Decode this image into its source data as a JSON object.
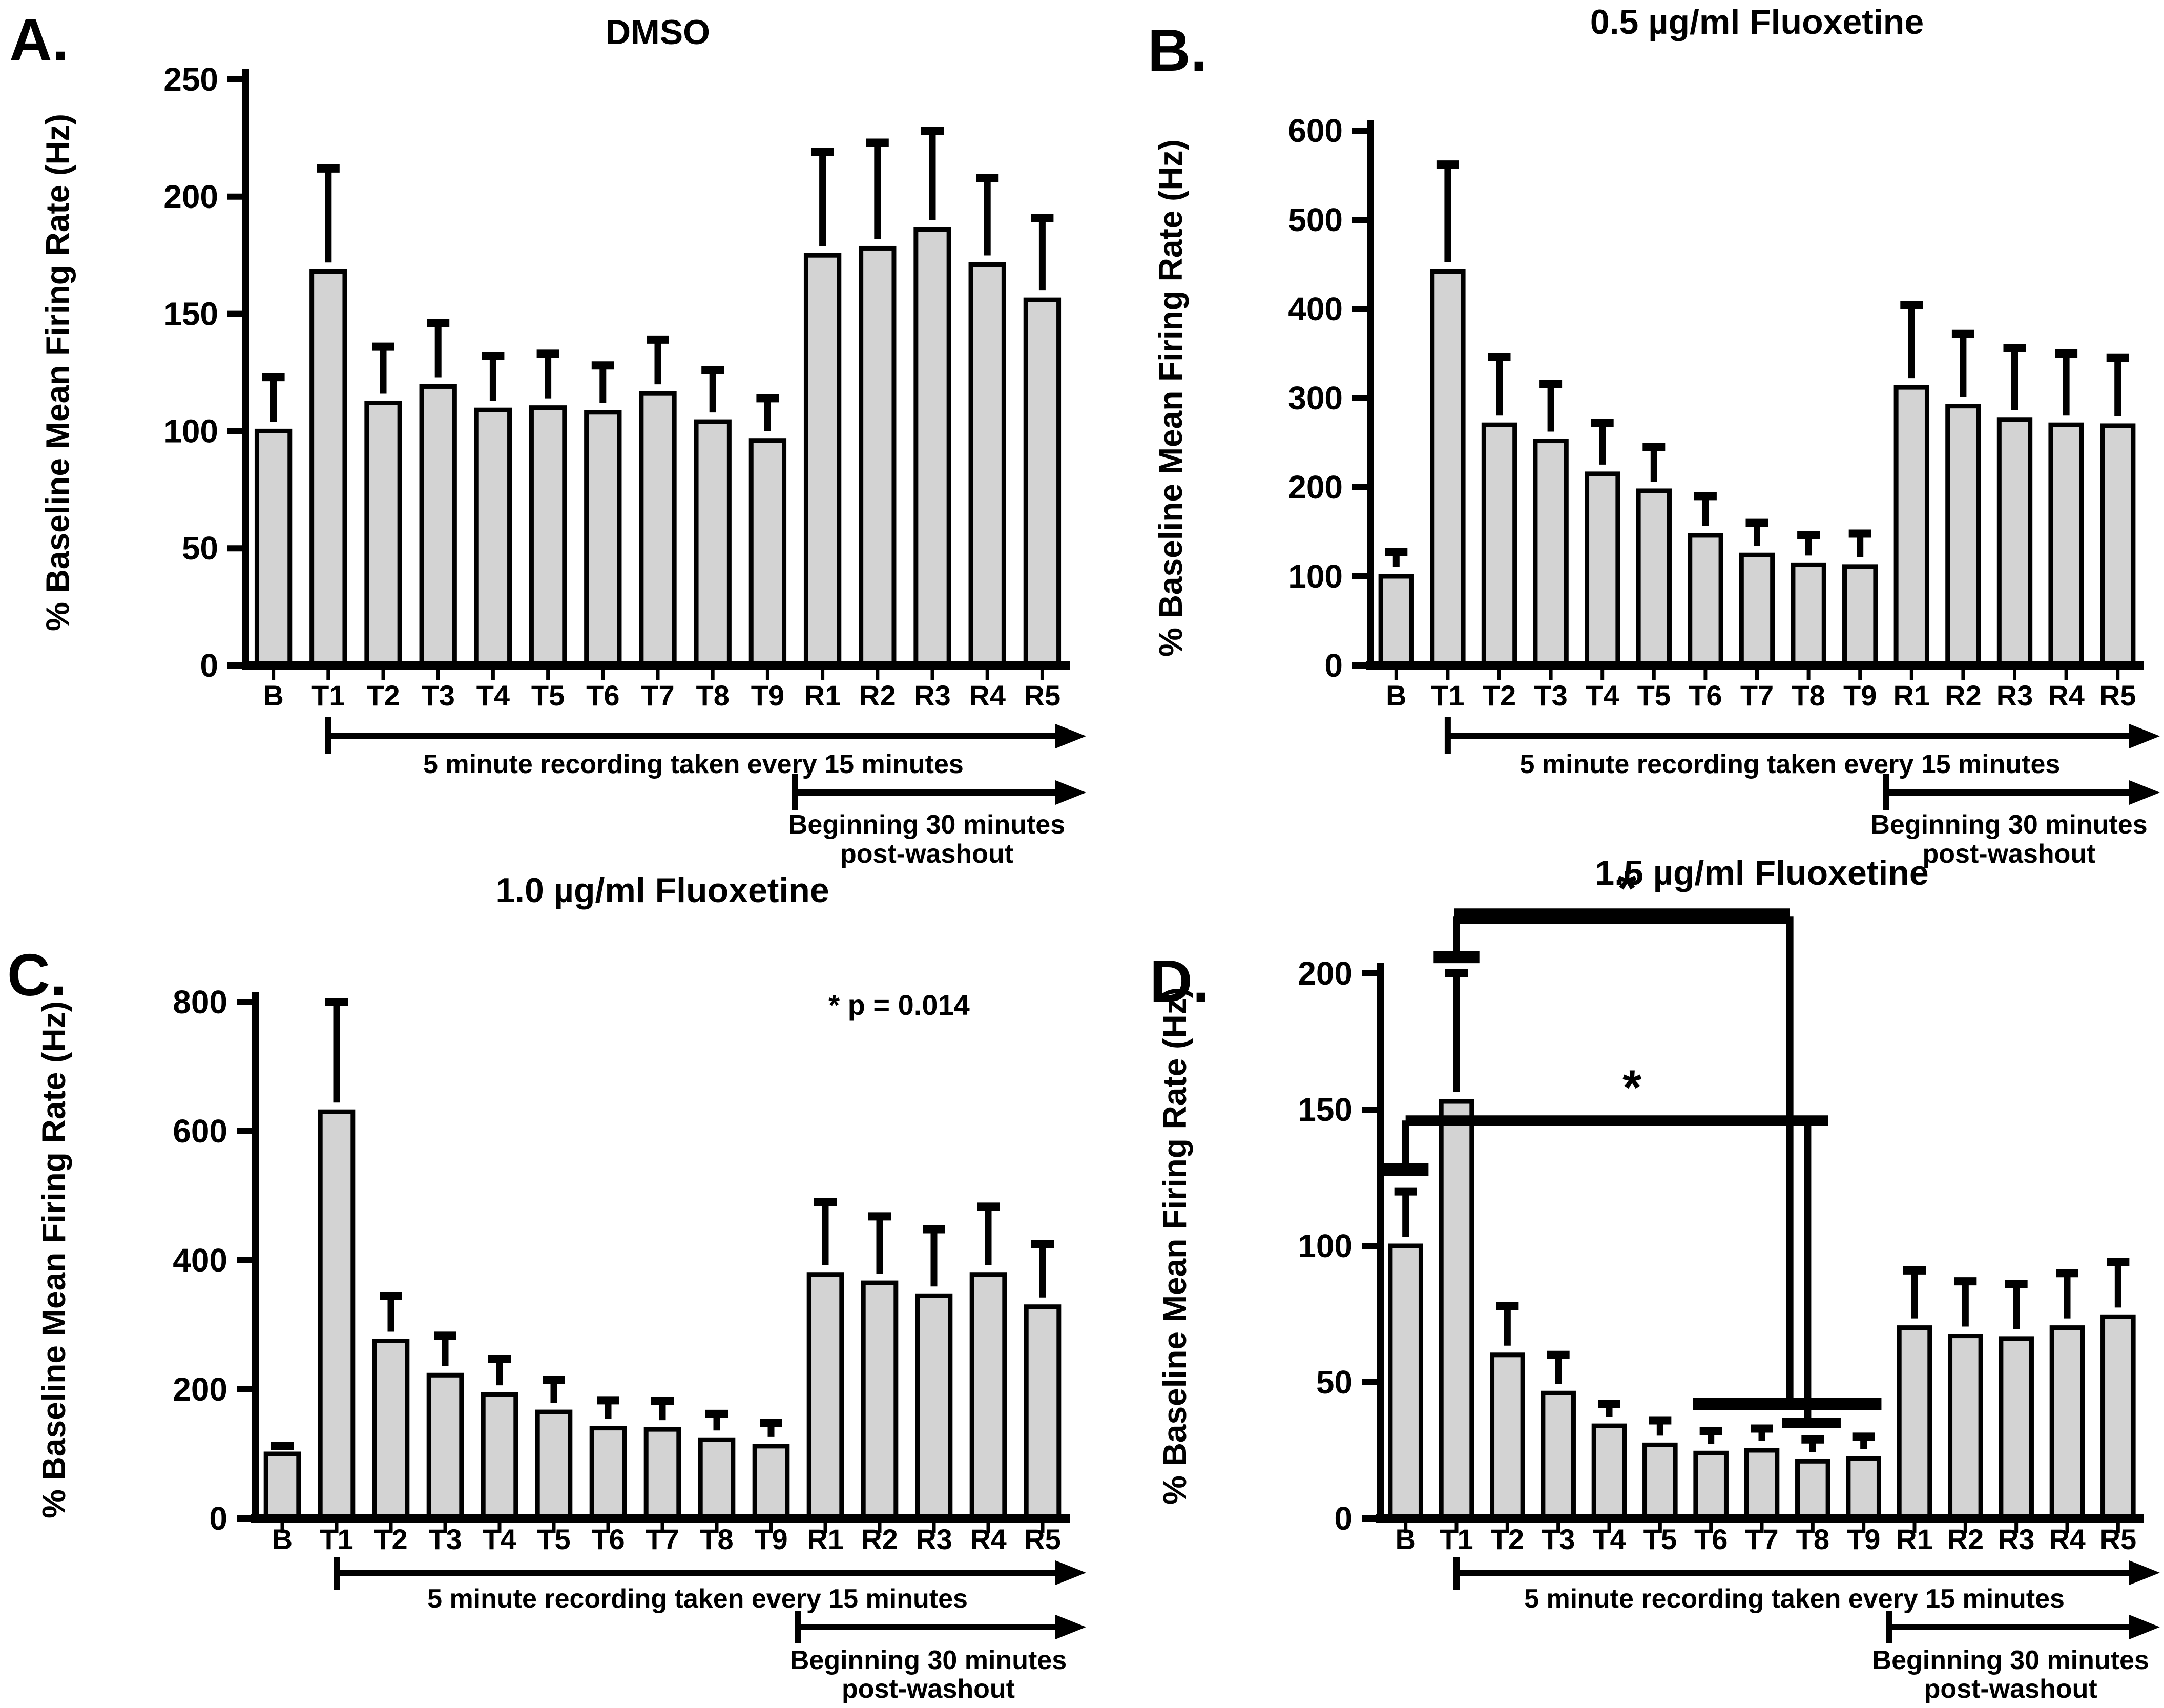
{
  "figure": {
    "background": "#ffffff",
    "ink_color": "#000000",
    "bar_fill_color": "#d3d3d3",
    "y_axis_label": "% Baseline Mean Firing Rate (Hz)",
    "arrow1_label": "5 minute recording taken every 15 minutes",
    "arrow2_label_line1": "Beginning 30 minutes",
    "arrow2_label_line2": "post-washout"
  },
  "chart_data": [
    {
      "panel": "A",
      "letter": "A.",
      "type": "bar",
      "title": "DMSO",
      "ylabel": "% Baseline Mean Firing Rate (Hz)",
      "xlabel": "",
      "categories": [
        "B",
        "T1",
        "T2",
        "T3",
        "T4",
        "T5",
        "T6",
        "T7",
        "T8",
        "T9",
        "R1",
        "R2",
        "R3",
        "R4",
        "R5"
      ],
      "values": [
        100,
        168,
        112,
        119,
        109,
        110,
        108,
        116,
        104,
        96,
        175,
        178,
        186,
        171,
        156
      ],
      "errors": [
        23,
        44,
        24,
        27,
        23,
        23,
        20,
        23,
        22,
        18,
        44,
        45,
        42,
        37,
        35
      ],
      "ylim": [
        0,
        250
      ],
      "yticks": [
        0,
        50,
        100,
        150,
        200,
        250
      ],
      "grid": false,
      "legend": null
    },
    {
      "panel": "B",
      "letter": "B.",
      "type": "bar",
      "title": "0.5 µg/ml Fluoxetine",
      "ylabel": "% Baseline Mean Firing Rate (Hz)",
      "xlabel": "",
      "categories": [
        "B",
        "T1",
        "T2",
        "T3",
        "T4",
        "T5",
        "T6",
        "T7",
        "T8",
        "T9",
        "R1",
        "R2",
        "R3",
        "R4",
        "R5"
      ],
      "values": [
        100,
        442,
        270,
        252,
        215,
        196,
        146,
        124,
        113,
        111,
        312,
        291,
        276,
        270,
        269
      ],
      "errors": [
        27,
        120,
        76,
        64,
        57,
        49,
        44,
        36,
        33,
        37,
        92,
        81,
        80,
        80,
        76
      ],
      "ylim": [
        0,
        600
      ],
      "yticks": [
        0,
        100,
        200,
        300,
        400,
        500,
        600
      ],
      "grid": false,
      "legend": null
    },
    {
      "panel": "C",
      "letter": "C.",
      "type": "bar",
      "title": "1.0 µg/ml Fluoxetine",
      "note": "* p = 0.014",
      "ylabel": "% Baseline Mean Firing Rate (Hz)",
      "xlabel": "",
      "categories": [
        "B",
        "T1",
        "T2",
        "T3",
        "T4",
        "T5",
        "T6",
        "T7",
        "T8",
        "T9",
        "R1",
        "R2",
        "R3",
        "R4",
        "R5"
      ],
      "values": [
        100,
        630,
        275,
        222,
        192,
        165,
        140,
        138,
        122,
        112,
        378,
        365,
        345,
        378,
        328
      ],
      "errors": [
        12,
        170,
        70,
        61,
        55,
        50,
        43,
        44,
        40,
        36,
        112,
        103,
        103,
        105,
        97
      ],
      "ylim": [
        0,
        800
      ],
      "yticks": [
        0,
        200,
        400,
        600,
        800
      ],
      "grid": false,
      "legend": null
    },
    {
      "panel": "D",
      "letter": "D.",
      "type": "bar",
      "title": "1.5 µg/ml Fluoxetine",
      "ylabel": "% Baseline Mean Firing Rate (Hz)",
      "xlabel": "",
      "categories": [
        "B",
        "T1",
        "T2",
        "T3",
        "T4",
        "T5",
        "T6",
        "T7",
        "T8",
        "T9",
        "R1",
        "R2",
        "R3",
        "R4",
        "R5"
      ],
      "values": [
        100,
        153,
        60,
        46,
        34,
        27,
        24,
        25,
        21,
        22,
        70,
        67,
        66,
        70,
        74
      ],
      "errors": [
        20,
        47,
        18,
        14,
        8,
        9,
        8,
        8,
        8,
        8,
        21,
        20,
        20,
        20,
        20
      ],
      "ylim": [
        0,
        200
      ],
      "yticks": [
        0,
        50,
        100,
        150,
        200
      ],
      "grid": false,
      "legend": null,
      "significance_brackets": [
        {
          "compares": [
            "T1",
            "T8"
          ],
          "star": "*",
          "star_x": 4.35,
          "star_y": 225,
          "segments": [
            [
              0.55,
              206,
              1.45,
              206,
              24
            ],
            [
              1.0,
              206,
              1.0,
              221,
              14
            ],
            [
              0.95,
              221,
              7.55,
              221,
              30
            ],
            [
              7.55,
              221,
              7.55,
              42,
              14
            ],
            [
              5.65,
              42,
              9.35,
              42,
              24
            ]
          ]
        },
        {
          "compares": [
            "B",
            "T8"
          ],
          "star": "*",
          "star_x": 4.45,
          "star_y": 152,
          "segments": [
            [
              -0.45,
              128,
              0.45,
              128,
              24
            ],
            [
              0.0,
              128,
              0.0,
              146,
              14
            ],
            [
              0.0,
              146,
              8.3,
              146,
              20
            ],
            [
              7.9,
              146,
              7.9,
              35,
              14
            ],
            [
              7.4,
              35,
              8.55,
              35,
              20
            ]
          ]
        }
      ]
    }
  ]
}
